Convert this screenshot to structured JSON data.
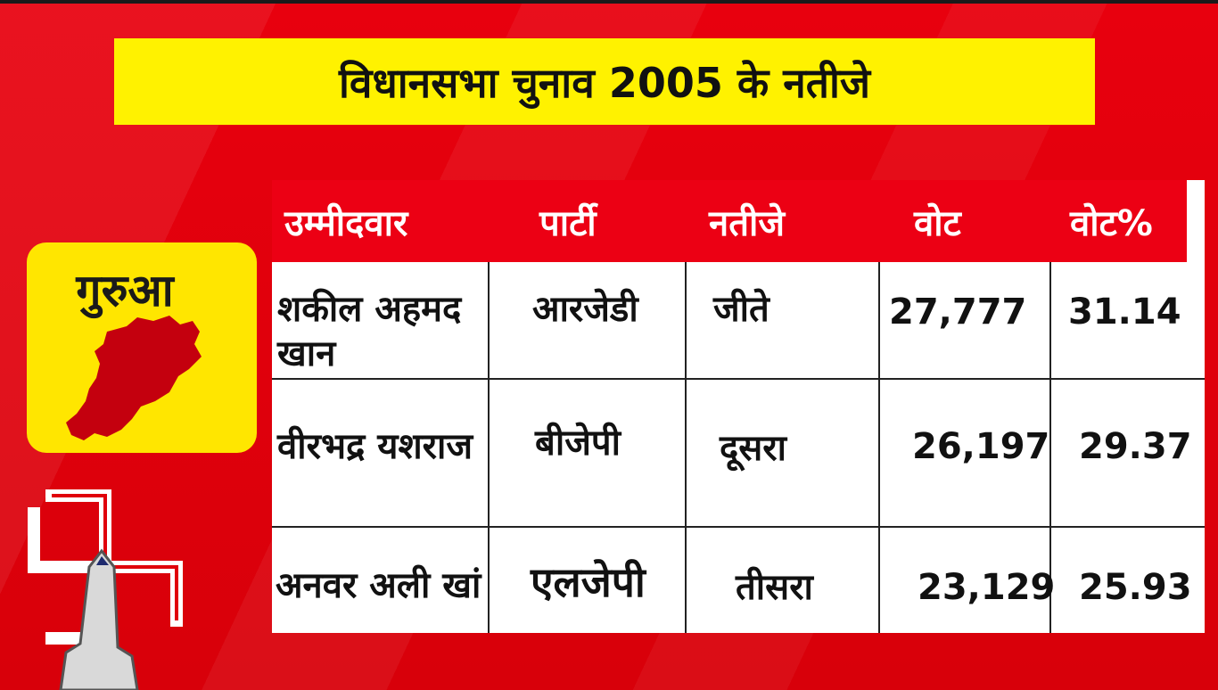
{
  "title": "विधानसभा चुनाव 2005 के नतीजे",
  "constituency": {
    "name": "गुरुआ",
    "map_icon": "constituency-map-icon"
  },
  "symbol_icon": "swastik-voting-finger-icon",
  "colors": {
    "background": "#e0000b",
    "title_bg": "#fff200",
    "header_bg": "#ec0014",
    "card_bg": "#ffe600",
    "map_fill": "#c4000e"
  },
  "table": {
    "headers": [
      "उम्मीदवार",
      "पार्टी",
      "नतीजे",
      "वोट",
      "वोट%"
    ],
    "rows": [
      {
        "candidate": "शकील अहमद खान",
        "party": "आरजेडी",
        "result": "जीते",
        "votes": "27,777",
        "vote_pct": "31.14"
      },
      {
        "candidate": "वीरभद्र यशराज",
        "party": "बीजेपी",
        "result": "दूसरा",
        "votes": "26,197",
        "vote_pct": "29.37"
      },
      {
        "candidate": "अनवर अली खां",
        "party": "एलजेपी",
        "result": "तीसरा",
        "votes": "23,129",
        "vote_pct": "25.93"
      }
    ]
  }
}
